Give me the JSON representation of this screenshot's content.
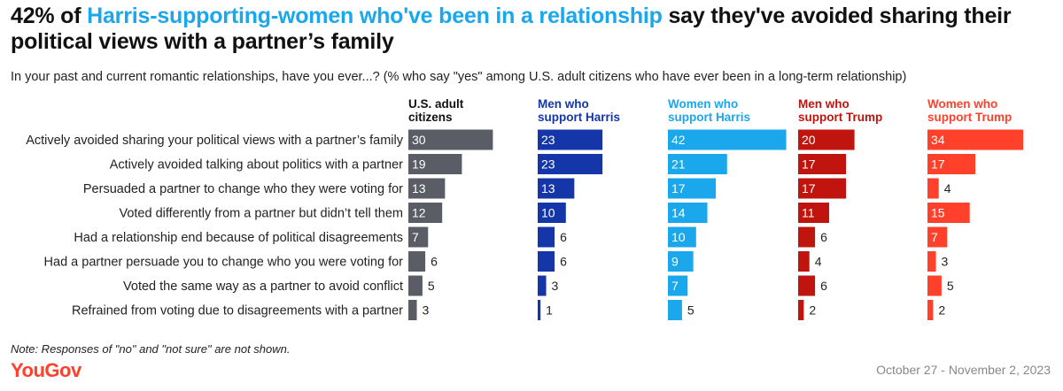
{
  "title": {
    "prefix": "42% of ",
    "highlight": "Harris-supporting-women who've been in a relationship",
    "suffix": " say they've avoided sharing their political views with a partner’s family"
  },
  "subtitle": "In your past and current romantic relationships, have you ever...? (% who say \"yes\" among U.S. adult citizens who have ever been in a long-term relationship)",
  "note": "Note: Responses of \"no\" and \"not sure\" are not shown.",
  "brand": "YouGov",
  "date": "October 27 - November 2, 2023",
  "colors": {
    "highlight": "#1aa7ec",
    "brand": "#ff412c"
  },
  "chart_data": {
    "type": "bar",
    "orientation": "horizontal",
    "categories": [
      "Actively avoided sharing your political views with a partner’s family",
      "Actively avoided talking about politics with a partner",
      "Persuaded a partner to change who they were voting for",
      "Voted differently from a partner but didn’t tell them",
      "Had a relationship end because of political disagreements",
      "Had a partner persuade you to change who you were voting for",
      "Voted the same way as a partner to avoid conflict",
      "Refrained from voting due to disagreements with a partner"
    ],
    "series": [
      {
        "name": "U.S. adult citizens",
        "color": "#5a5d66",
        "values": [
          30,
          19,
          13,
          12,
          7,
          6,
          5,
          3
        ]
      },
      {
        "name": "Men who support Harris",
        "color": "#1436a8",
        "values": [
          23,
          23,
          13,
          10,
          6,
          6,
          3,
          1
        ]
      },
      {
        "name": "Women who support Harris",
        "color": "#1aa7ec",
        "values": [
          42,
          21,
          17,
          14,
          10,
          9,
          7,
          5
        ]
      },
      {
        "name": "Men who support Trump",
        "color": "#c0140e",
        "values": [
          20,
          17,
          17,
          11,
          6,
          4,
          6,
          2
        ]
      },
      {
        "name": "Women who support Trump",
        "color": "#ff412c",
        "values": [
          34,
          17,
          4,
          15,
          7,
          3,
          5,
          2
        ]
      }
    ]
  }
}
